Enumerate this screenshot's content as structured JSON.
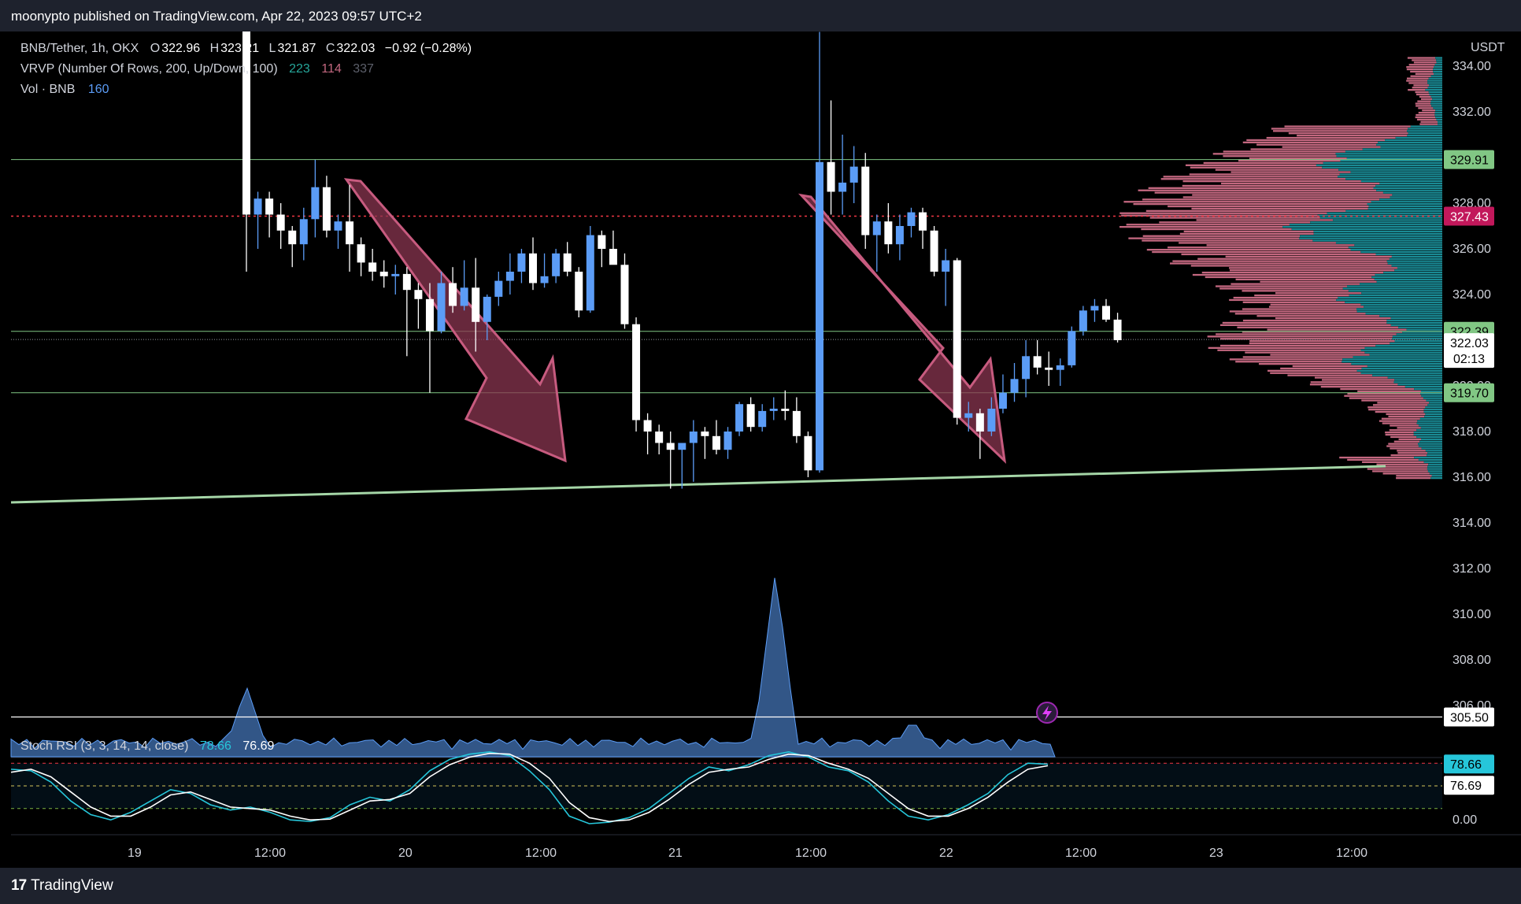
{
  "header": {
    "published": "moonypto published on TradingView.com, Apr 22, 2023 09:57 UTC+2"
  },
  "legend": {
    "symbol": "BNB/Tether, 1h, OKX",
    "o_label": "O",
    "o": "322.96",
    "h_label": "H",
    "h": "323.21",
    "l_label": "L",
    "l": "321.87",
    "c_label": "C",
    "c": "322.03",
    "change": "−0.92 (−0.28%)",
    "vrvp": "VRVP (Number Of Rows, 200, Up/Down, 100)",
    "vrvp_up": "223",
    "vrvp_down": "114",
    "vrvp_total": "337",
    "vol": "Vol · BNB",
    "vol_value": "160",
    "stoch": "Stoch RSI (3, 3, 14, 14, close)",
    "stoch_k": "78.66",
    "stoch_d": "76.69"
  },
  "footer": {
    "brand": "TradingView"
  },
  "colors": {
    "up": "#5b9cf6",
    "down": "#ffffff",
    "profile_up": "#1a8a94",
    "profile_down": "#c2677f",
    "level": "#81c784",
    "poc": "#f23645",
    "arrow": "#8a3550"
  },
  "chart_data": {
    "type": "candlestick",
    "y_unit": "USDT",
    "y_ticks": [
      "334.00",
      "332.00",
      "330.00",
      "328.00",
      "326.00",
      "324.00",
      "322.00",
      "320.00",
      "318.00",
      "316.00",
      "314.00",
      "312.00",
      "310.00",
      "308.00",
      "306.00"
    ],
    "x_ticks": [
      "19",
      "12:00",
      "20",
      "12:00",
      "21",
      "12:00",
      "22",
      "12:00",
      "23",
      "12:00"
    ],
    "price_tags": {
      "r1": "329.91",
      "poc": "327.43",
      "r2": "322.39",
      "last": "322.03",
      "countdown": "02:13",
      "s1": "319.70",
      "vol_level": "305.50",
      "k": "78.66",
      "d": "76.69"
    },
    "stoch_ticks": [
      "0.00"
    ],
    "candles": [
      {
        "o": 336.5,
        "h": 336.5,
        "l": 325.0,
        "c": 327.5
      },
      {
        "o": 327.5,
        "h": 328.5,
        "l": 326.0,
        "c": 328.2
      },
      {
        "o": 328.2,
        "h": 328.5,
        "l": 326.5,
        "c": 327.5
      },
      {
        "o": 327.5,
        "h": 328.0,
        "l": 326.0,
        "c": 326.8
      },
      {
        "o": 326.8,
        "h": 327.0,
        "l": 325.2,
        "c": 326.2
      },
      {
        "o": 326.2,
        "h": 327.8,
        "l": 325.5,
        "c": 327.3
      },
      {
        "o": 327.3,
        "h": 329.9,
        "l": 326.5,
        "c": 328.7
      },
      {
        "o": 328.7,
        "h": 329.2,
        "l": 326.5,
        "c": 326.8
      },
      {
        "o": 326.8,
        "h": 327.5,
        "l": 326.0,
        "c": 327.2
      },
      {
        "o": 327.2,
        "h": 328.8,
        "l": 325.0,
        "c": 326.2
      },
      {
        "o": 326.2,
        "h": 326.5,
        "l": 324.8,
        "c": 325.4
      },
      {
        "o": 325.4,
        "h": 326.0,
        "l": 324.6,
        "c": 325.0
      },
      {
        "o": 325.0,
        "h": 325.5,
        "l": 324.3,
        "c": 324.8
      },
      {
        "o": 324.8,
        "h": 325.3,
        "l": 324.0,
        "c": 324.9
      },
      {
        "o": 324.9,
        "h": 325.2,
        "l": 321.3,
        "c": 324.2
      },
      {
        "o": 324.2,
        "h": 324.5,
        "l": 322.5,
        "c": 323.8
      },
      {
        "o": 323.8,
        "h": 324.5,
        "l": 319.7,
        "c": 322.4
      },
      {
        "o": 322.4,
        "h": 325.0,
        "l": 322.3,
        "c": 324.5
      },
      {
        "o": 324.5,
        "h": 325.2,
        "l": 323.2,
        "c": 323.5
      },
      {
        "o": 323.5,
        "h": 325.5,
        "l": 323.3,
        "c": 324.3
      },
      {
        "o": 324.3,
        "h": 325.6,
        "l": 321.5,
        "c": 322.8
      },
      {
        "o": 322.8,
        "h": 324.0,
        "l": 322.0,
        "c": 323.9
      },
      {
        "o": 323.9,
        "h": 325.0,
        "l": 323.5,
        "c": 324.6
      },
      {
        "o": 324.6,
        "h": 325.8,
        "l": 324.0,
        "c": 325.0
      },
      {
        "o": 325.0,
        "h": 326.0,
        "l": 324.5,
        "c": 325.8
      },
      {
        "o": 325.8,
        "h": 326.5,
        "l": 324.2,
        "c": 324.5
      },
      {
        "o": 324.5,
        "h": 325.8,
        "l": 324.3,
        "c": 324.8
      },
      {
        "o": 324.8,
        "h": 326.0,
        "l": 324.5,
        "c": 325.8
      },
      {
        "o": 325.8,
        "h": 326.3,
        "l": 324.8,
        "c": 325.0
      },
      {
        "o": 325.0,
        "h": 325.2,
        "l": 323.0,
        "c": 323.3
      },
      {
        "o": 323.3,
        "h": 327.0,
        "l": 323.2,
        "c": 326.6
      },
      {
        "o": 326.6,
        "h": 326.8,
        "l": 325.2,
        "c": 326.0
      },
      {
        "o": 326.0,
        "h": 326.8,
        "l": 325.5,
        "c": 325.3
      },
      {
        "o": 325.3,
        "h": 325.8,
        "l": 322.5,
        "c": 322.7
      },
      {
        "o": 322.7,
        "h": 323.0,
        "l": 318.0,
        "c": 318.5
      },
      {
        "o": 318.5,
        "h": 318.8,
        "l": 317.0,
        "c": 318.0
      },
      {
        "o": 318.0,
        "h": 318.3,
        "l": 317.0,
        "c": 317.5
      },
      {
        "o": 317.5,
        "h": 318.0,
        "l": 315.5,
        "c": 317.2
      },
      {
        "o": 317.2,
        "h": 317.5,
        "l": 315.5,
        "c": 317.5
      },
      {
        "o": 317.5,
        "h": 318.5,
        "l": 315.8,
        "c": 318.0
      },
      {
        "o": 318.0,
        "h": 318.2,
        "l": 316.8,
        "c": 317.8
      },
      {
        "o": 317.8,
        "h": 318.5,
        "l": 317.0,
        "c": 317.2
      },
      {
        "o": 317.2,
        "h": 318.2,
        "l": 316.8,
        "c": 318.0
      },
      {
        "o": 318.0,
        "h": 319.3,
        "l": 317.8,
        "c": 319.2
      },
      {
        "o": 319.2,
        "h": 319.5,
        "l": 318.0,
        "c": 318.2
      },
      {
        "o": 318.2,
        "h": 319.2,
        "l": 318.0,
        "c": 318.9
      },
      {
        "o": 318.9,
        "h": 319.5,
        "l": 318.5,
        "c": 319.0
      },
      {
        "o": 319.0,
        "h": 319.8,
        "l": 318.5,
        "c": 318.9
      },
      {
        "o": 318.9,
        "h": 319.5,
        "l": 317.5,
        "c": 317.8
      },
      {
        "o": 317.8,
        "h": 318.0,
        "l": 316.0,
        "c": 316.3
      },
      {
        "o": 316.3,
        "h": 335.5,
        "l": 316.2,
        "c": 329.8
      },
      {
        "o": 329.8,
        "h": 332.5,
        "l": 327.5,
        "c": 328.5
      },
      {
        "o": 328.5,
        "h": 331.0,
        "l": 327.5,
        "c": 328.9
      },
      {
        "o": 328.9,
        "h": 330.5,
        "l": 328.0,
        "c": 329.6
      },
      {
        "o": 329.6,
        "h": 330.2,
        "l": 326.0,
        "c": 326.6
      },
      {
        "o": 326.6,
        "h": 327.5,
        "l": 325.0,
        "c": 327.2
      },
      {
        "o": 327.2,
        "h": 328.0,
        "l": 325.8,
        "c": 326.2
      },
      {
        "o": 326.2,
        "h": 327.5,
        "l": 325.5,
        "c": 327.0
      },
      {
        "o": 327.0,
        "h": 327.8,
        "l": 326.5,
        "c": 327.6
      },
      {
        "o": 327.6,
        "h": 327.8,
        "l": 326.0,
        "c": 326.8
      },
      {
        "o": 326.8,
        "h": 327.0,
        "l": 324.8,
        "c": 325.0
      },
      {
        "o": 325.0,
        "h": 326.0,
        "l": 323.5,
        "c": 325.5
      },
      {
        "o": 325.5,
        "h": 325.6,
        "l": 318.3,
        "c": 318.6
      },
      {
        "o": 318.6,
        "h": 319.3,
        "l": 318.0,
        "c": 318.8
      },
      {
        "o": 318.8,
        "h": 319.0,
        "l": 316.8,
        "c": 318.0
      },
      {
        "o": 318.0,
        "h": 319.5,
        "l": 317.8,
        "c": 319.0
      },
      {
        "o": 319.0,
        "h": 320.5,
        "l": 318.8,
        "c": 319.7
      },
      {
        "o": 319.7,
        "h": 321.0,
        "l": 319.3,
        "c": 320.3
      },
      {
        "o": 320.3,
        "h": 322.0,
        "l": 319.5,
        "c": 321.3
      },
      {
        "o": 321.3,
        "h": 322.0,
        "l": 320.5,
        "c": 320.8
      },
      {
        "o": 320.8,
        "h": 321.5,
        "l": 320.0,
        "c": 320.7
      },
      {
        "o": 320.7,
        "h": 321.2,
        "l": 320.0,
        "c": 320.9
      },
      {
        "o": 320.9,
        "h": 322.6,
        "l": 320.8,
        "c": 322.4
      },
      {
        "o": 322.4,
        "h": 323.5,
        "l": 322.2,
        "c": 323.3
      },
      {
        "o": 323.3,
        "h": 323.8,
        "l": 322.8,
        "c": 323.5
      },
      {
        "o": 323.5,
        "h": 323.8,
        "l": 322.8,
        "c": 322.9
      },
      {
        "o": 322.9,
        "h": 323.2,
        "l": 321.9,
        "c": 322.0
      }
    ]
  }
}
